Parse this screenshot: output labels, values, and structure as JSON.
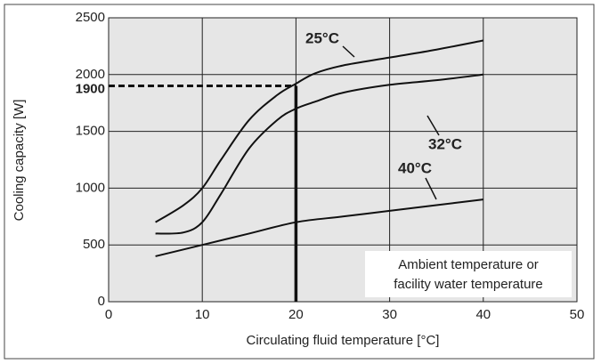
{
  "chart_data": {
    "type": "line",
    "x_label": "Circulating fluid temperature [°C]",
    "y_label": "Cooling capacity [W]",
    "xlim": [
      0,
      50
    ],
    "xticks": [
      0,
      10,
      20,
      30,
      40,
      50
    ],
    "ylim": [
      0,
      2500
    ],
    "yticks": [
      0,
      500,
      1000,
      1500,
      2000,
      2500
    ],
    "grid": true,
    "series": [
      {
        "name": "25°C",
        "color": "#111111",
        "x": [
          5,
          8,
          10,
          12,
          15,
          18,
          20,
          22,
          25,
          30,
          35,
          40
        ],
        "values": [
          700,
          850,
          1000,
          1250,
          1600,
          1820,
          1920,
          2010,
          2080,
          2150,
          2220,
          2300
        ]
      },
      {
        "name": "32°C",
        "color": "#111111",
        "x": [
          5,
          8,
          10,
          12,
          15,
          18,
          20,
          22,
          25,
          30,
          35,
          40
        ],
        "values": [
          600,
          610,
          700,
          950,
          1350,
          1600,
          1700,
          1760,
          1840,
          1910,
          1950,
          2000
        ]
      },
      {
        "name": "40°C",
        "color": "#111111",
        "x": [
          5,
          10,
          15,
          20,
          25,
          30,
          35,
          40
        ],
        "values": [
          400,
          500,
          600,
          700,
          750,
          800,
          850,
          900
        ]
      }
    ],
    "reference": {
      "x": 20,
      "y": 1900
    },
    "note_lines": [
      "Ambient temperature or",
      "facility water temperature"
    ]
  }
}
